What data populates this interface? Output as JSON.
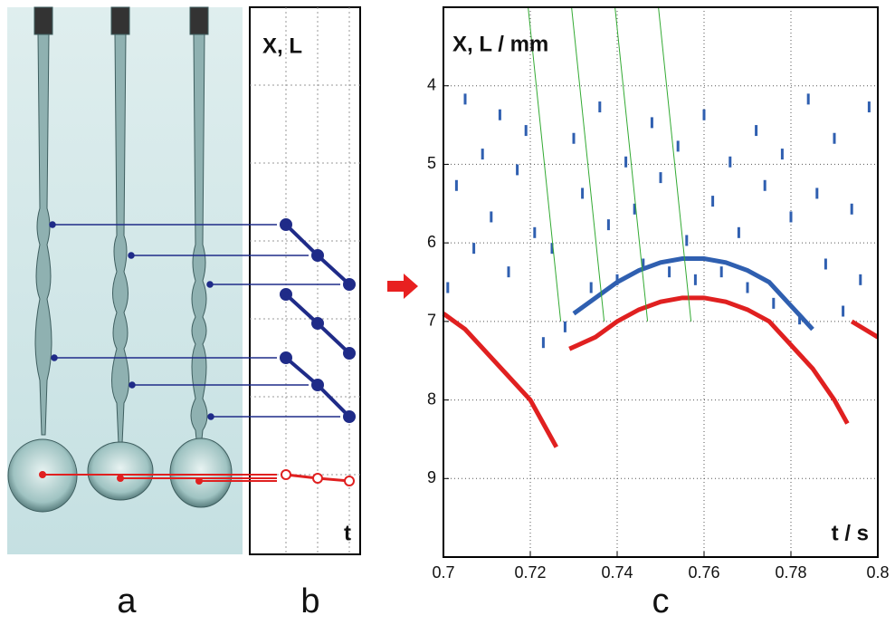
{
  "figure": {
    "panel_labels": [
      "a",
      "b",
      "c"
    ],
    "panel_b": {
      "y_label": "X, L",
      "x_label": "t"
    }
  },
  "chart_data": {
    "type": "scatter",
    "x_label": "t / s",
    "y_label": "X, L / mm",
    "xlim": [
      0.7,
      0.8
    ],
    "xticks": [
      0.7,
      0.72,
      0.74,
      0.76,
      0.78,
      0.8
    ],
    "ylim": [
      3,
      10
    ],
    "yticks": [
      4,
      5,
      6,
      7,
      8,
      9
    ],
    "y_inverted": true,
    "grid": true,
    "series": [
      {
        "color": "#2f5fb0",
        "mode": "markers",
        "x": [
          0.701,
          0.703,
          0.705,
          0.707,
          0.709,
          0.711,
          0.713,
          0.715,
          0.717,
          0.719,
          0.721,
          0.723,
          0.725,
          0.728,
          0.73,
          0.732,
          0.734,
          0.736,
          0.738,
          0.74,
          0.742,
          0.744,
          0.746,
          0.748,
          0.75,
          0.752,
          0.754,
          0.756,
          0.758,
          0.76,
          0.762,
          0.764,
          0.766,
          0.768,
          0.77,
          0.772,
          0.774,
          0.776,
          0.778,
          0.78,
          0.782,
          0.784,
          0.786,
          0.788,
          0.79,
          0.792,
          0.794,
          0.796,
          0.798
        ],
        "values": [
          6.5,
          5.2,
          4.1,
          6.0,
          4.8,
          5.6,
          4.3,
          6.3,
          5.0,
          4.5,
          5.8,
          7.2,
          6.0,
          7.0,
          4.6,
          5.3,
          6.5,
          4.2,
          5.7,
          6.4,
          4.9,
          5.5,
          6.2,
          4.4,
          5.1,
          6.3,
          4.7,
          5.9,
          6.4,
          4.3,
          5.4,
          6.3,
          4.9,
          5.8,
          6.5,
          4.5,
          5.2,
          6.7,
          4.8,
          5.6,
          6.9,
          4.1,
          5.3,
          6.2,
          4.6,
          6.8,
          5.5,
          6.4,
          4.2
        ]
      },
      {
        "color": "#2f5fb0",
        "mode": "line",
        "x": [
          0.73,
          0.735,
          0.74,
          0.745,
          0.75,
          0.755,
          0.76,
          0.765,
          0.77,
          0.775,
          0.78,
          0.785
        ],
        "values": [
          6.9,
          6.7,
          6.5,
          6.35,
          6.25,
          6.2,
          6.2,
          6.25,
          6.35,
          6.5,
          6.8,
          7.1
        ]
      },
      {
        "color": "#e02020",
        "mode": "line",
        "x": [
          0.7,
          0.705,
          0.71,
          0.715,
          0.72,
          0.724,
          0.726,
          null,
          0.729,
          0.735,
          0.74,
          0.745,
          0.75,
          0.755,
          0.76,
          0.765,
          0.77,
          0.775,
          0.78,
          0.785,
          0.79,
          0.793,
          null,
          0.794,
          0.797,
          0.8
        ],
        "values": [
          6.9,
          7.1,
          7.4,
          7.7,
          8.0,
          8.4,
          8.6,
          null,
          7.35,
          7.2,
          7.0,
          6.85,
          6.75,
          6.7,
          6.7,
          6.75,
          6.85,
          7.0,
          7.3,
          7.6,
          8.0,
          8.3,
          null,
          7.0,
          7.1,
          7.2
        ]
      },
      {
        "color": "#33aa33",
        "mode": "thin",
        "x": [
          0.7195,
          0.727
        ],
        "values": [
          3,
          7
        ]
      },
      {
        "color": "#33aa33",
        "mode": "thin",
        "x": [
          0.7295,
          0.737
        ],
        "values": [
          3,
          7
        ]
      },
      {
        "color": "#33aa33",
        "mode": "thin",
        "x": [
          0.7395,
          0.747
        ],
        "values": [
          3,
          7
        ]
      },
      {
        "color": "#33aa33",
        "mode": "thin",
        "x": [
          0.7495,
          0.757
        ],
        "values": [
          3,
          7
        ]
      }
    ]
  }
}
